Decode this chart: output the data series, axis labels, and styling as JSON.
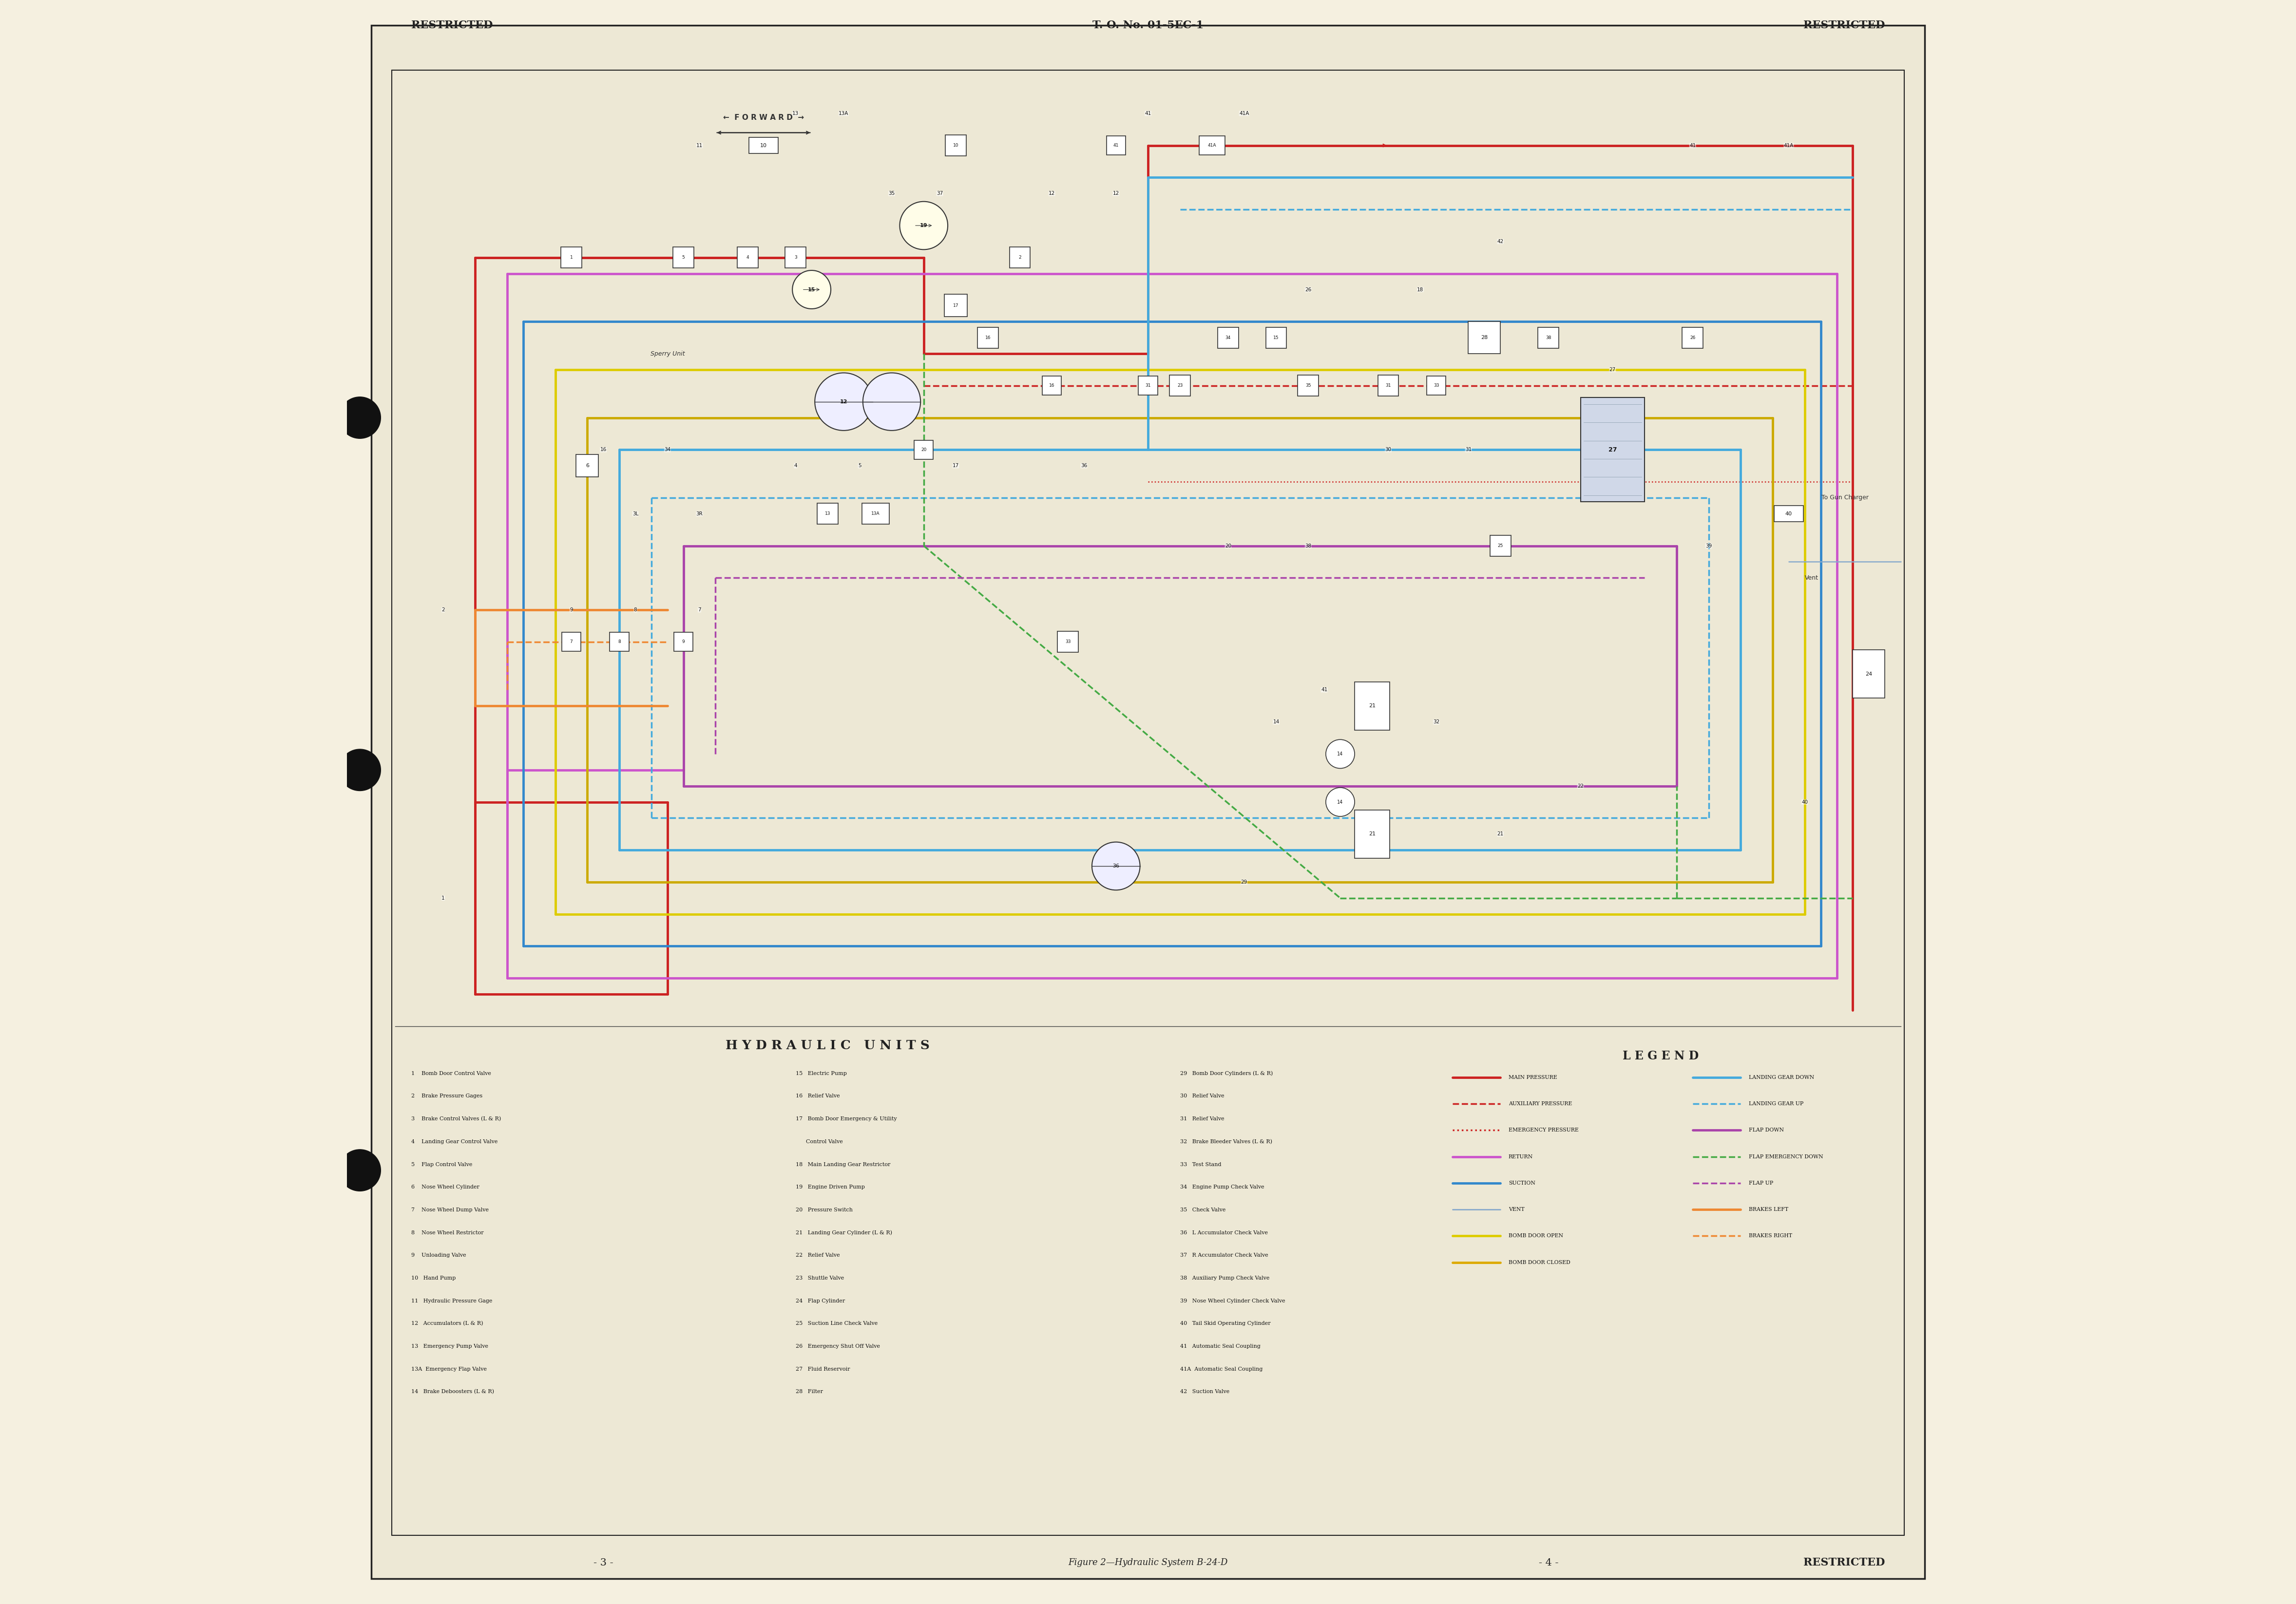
{
  "bg_color": "#f5f0e0",
  "page_bg": "#ede8d5",
  "border_color": "#222222",
  "title": "T. O. No. 01-5EC-1",
  "header_left": "RESTRICTED",
  "header_right": "RESTRICTED",
  "footer_left": "- 3 -",
  "footer_right": "- 4 -",
  "footer_right_text": "RESTRICTED",
  "diagram_title": "H Y D R A U L I C   U N I T S",
  "figure_caption": "Figure 2—Hydraulic System B-24-D",
  "forward_label": "←  F O R W A R D  →",
  "legend_title": "L E G E N D",
  "legend_items_left": [
    {
      "label": "MAIN PRESSURE",
      "color": "#cc2222",
      "style": "solid",
      "lw": 3.5
    },
    {
      "label": "AUXILIARY PRESSURE",
      "color": "#cc2222",
      "style": "dashed",
      "lw": 2.5
    },
    {
      "label": "EMERGENCY PRESSURE",
      "color": "#cc2222",
      "style": "dotted",
      "lw": 2.5
    },
    {
      "label": "RETURN",
      "color": "#cc55cc",
      "style": "solid",
      "lw": 3.5
    },
    {
      "label": "SUCTION",
      "color": "#3388cc",
      "style": "solid",
      "lw": 3.5
    },
    {
      "label": "VENT",
      "color": "#88aacc",
      "style": "solid",
      "lw": 2.0
    },
    {
      "label": "BOMB DOOR OPEN",
      "color": "#ddcc00",
      "style": "solid",
      "lw": 3.5
    },
    {
      "label": "BOMB DOOR CLOSED",
      "color": "#ddaa00",
      "style": "solid",
      "lw": 3.5
    }
  ],
  "legend_items_right": [
    {
      "label": "LANDING GEAR DOWN",
      "color": "#44aadd",
      "style": "solid",
      "lw": 3.5
    },
    {
      "label": "LANDING GEAR UP",
      "color": "#44aadd",
      "style": "dashed",
      "lw": 2.5
    },
    {
      "label": "FLAP DOWN",
      "color": "#aa44aa",
      "style": "solid",
      "lw": 3.5
    },
    {
      "label": "FLAP EMERGENCY DOWN",
      "color": "#44aa44",
      "style": "dashed",
      "lw": 2.5
    },
    {
      "label": "FLAP UP",
      "color": "#aa44aa",
      "style": "dashed",
      "lw": 2.5
    },
    {
      "label": "BRAKES LEFT",
      "color": "#ee8833",
      "style": "solid",
      "lw": 3.5
    },
    {
      "label": "BRAKES RIGHT",
      "color": "#ee8833",
      "style": "dashed",
      "lw": 2.5
    }
  ],
  "units_list_col1": [
    "1    Bomb Door Control Valve",
    "2    Brake Pressure Gages",
    "3    Brake Control Valves (L & R)",
    "4    Landing Gear Control Valve",
    "5    Flap Control Valve",
    "6    Nose Wheel Cylinder",
    "7    Nose Wheel Dump Valve",
    "8    Nose Wheel Restrictor",
    "9    Unloading Valve",
    "10   Hand Pump",
    "11   Hydraulic Pressure Gage",
    "12   Accumulators (L & R)",
    "13   Emergency Pump Valve",
    "13A  Emergency Flap Valve",
    "14   Brake Deboosters (L & R)"
  ],
  "units_list_col2": [
    "15   Electric Pump",
    "16   Relief Valve",
    "17   Bomb Door Emergency & Utility",
    "      Control Valve",
    "18   Main Landing Gear Restrictor",
    "19   Engine Driven Pump",
    "20   Pressure Switch",
    "21   Landing Gear Cylinder (L & R)",
    "22   Relief Valve",
    "23   Shuttle Valve",
    "24   Flap Cylinder",
    "25   Suction Line Check Valve",
    "26   Emergency Shut Off Valve",
    "27   Fluid Reservoir",
    "28   Filter"
  ],
  "units_list_col3": [
    "29   Bomb Door Cylinders (L & R)",
    "30   Relief Valve",
    "31   Relief Valve",
    "32   Brake Bleeder Valves (L & R)",
    "33   Test Stand",
    "34   Engine Pump Check Valve",
    "35   Check Valve",
    "36   L Accumulator Check Valve",
    "37   R Accumulator Check Valve",
    "38   Auxiliary Pump Check Valve",
    "39   Nose Wheel Cylinder Check Valve",
    "40   Tail Skid Operating Cylinder",
    "41   Automatic Seal Coupling",
    "41A  Automatic Seal Coupling",
    "42   Suction Valve"
  ],
  "c_main": "#cc2222",
  "c_return": "#cc55cc",
  "c_suction": "#3388cc",
  "c_vent": "#88aacc",
  "c_bdopen": "#ddcc00",
  "c_bdclosed": "#ccaa00",
  "c_lgdown": "#44aadd",
  "c_lgup": "#44aadd",
  "c_flapdown": "#aa44aa",
  "c_flapemerg": "#44aa44",
  "c_flapup": "#aa44aa",
  "c_brakesL": "#ee8833",
  "c_brakesR": "#ee8833",
  "c_orange": "#ee8833"
}
